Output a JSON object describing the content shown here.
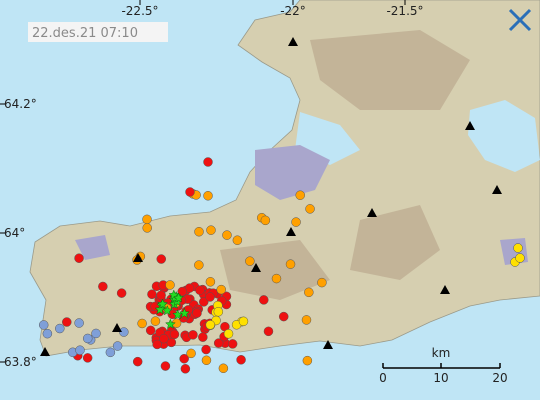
{
  "timestamp": "22.des.21 07:10",
  "longitude_labels": [
    "-22.5°",
    "-22°",
    "-21.5°"
  ],
  "latitude_labels": [
    "64.2°",
    "64°",
    "63.8°"
  ],
  "scale": {
    "unit": "km",
    "labels": [
      "0",
      "10",
      "20"
    ]
  }
}
